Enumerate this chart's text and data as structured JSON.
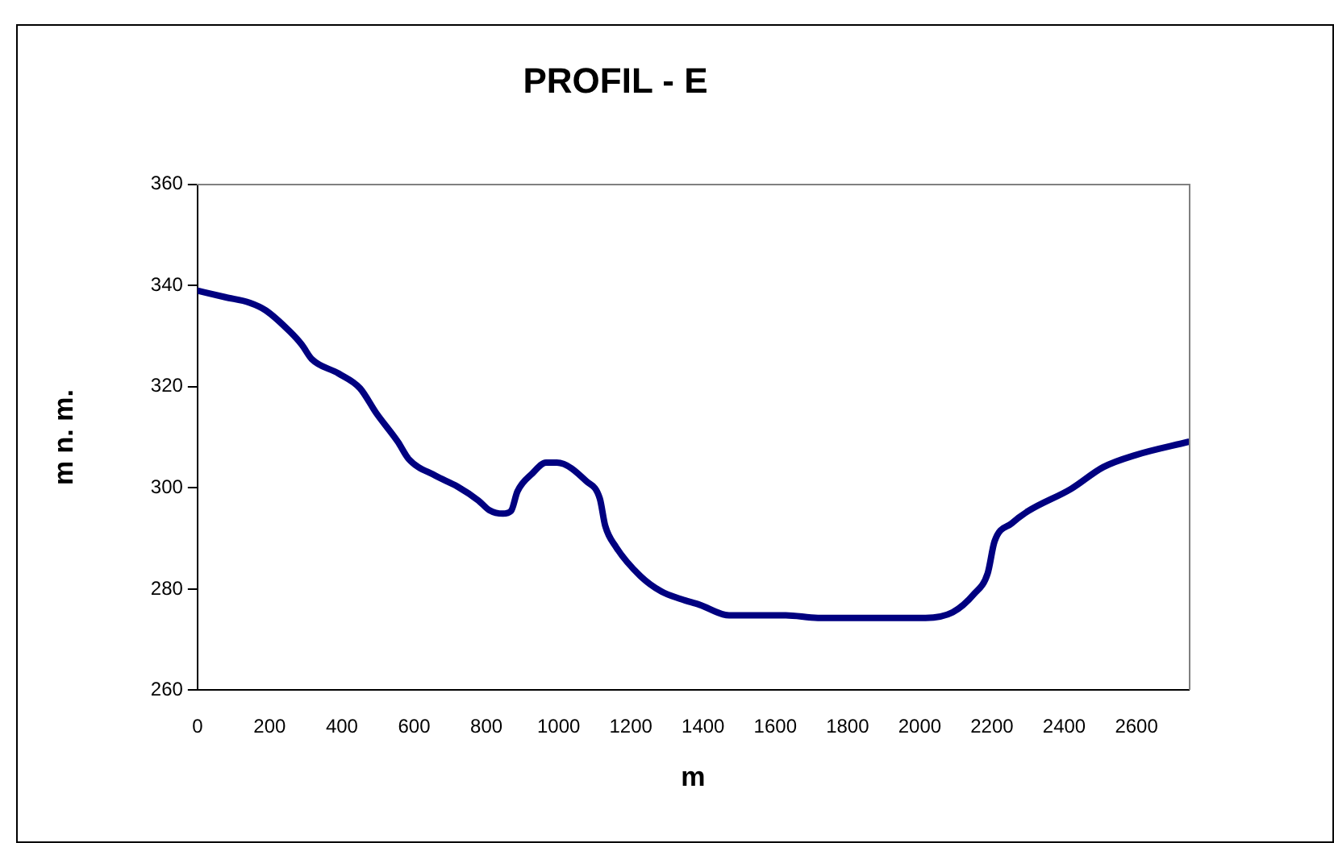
{
  "chart_data": {
    "type": "line",
    "title": "PROFIL - E",
    "xlabel": "m",
    "ylabel": "m n. m.",
    "series": [
      {
        "color": "#000080",
        "x": [
          0,
          77,
          145,
          189,
          256,
          289,
          316,
          391,
          450,
          495,
          555,
          585,
          659,
          719,
          778,
          808,
          846,
          868,
          886,
          928,
          965,
          995,
          1077,
          1114,
          1129,
          1159,
          1226,
          1285,
          1340,
          1390,
          1472,
          1629,
          1718,
          2016,
          2091,
          2150,
          2188,
          2207,
          2255,
          2300,
          2419,
          2508,
          2598,
          2744
        ],
        "values": [
          339,
          337.7,
          336.6,
          335.1,
          330.9,
          328.3,
          325.5,
          322.6,
          319.7,
          314.8,
          309.1,
          305.7,
          302.4,
          300.3,
          297.5,
          295.6,
          294.9,
          295.4,
          299.3,
          302.9,
          305,
          305,
          301.3,
          297.9,
          292.5,
          288.3,
          282.6,
          279.5,
          278,
          276.9,
          274.8,
          274.8,
          274.3,
          274.3,
          275.4,
          279,
          283.1,
          289.4,
          293,
          295.4,
          299.8,
          304.1,
          306.5,
          309.1
        ]
      }
    ],
    "xlim": [
      0,
      2745
    ],
    "xticks": [
      0,
      200,
      400,
      600,
      800,
      1000,
      1200,
      1400,
      1600,
      1800,
      2000,
      2200,
      2400,
      2600
    ],
    "ylim": [
      260,
      360
    ],
    "yticks": [
      260,
      280,
      300,
      320,
      340,
      360
    ],
    "grid": false,
    "legend": false,
    "marker": "none",
    "line_style": "solid"
  }
}
